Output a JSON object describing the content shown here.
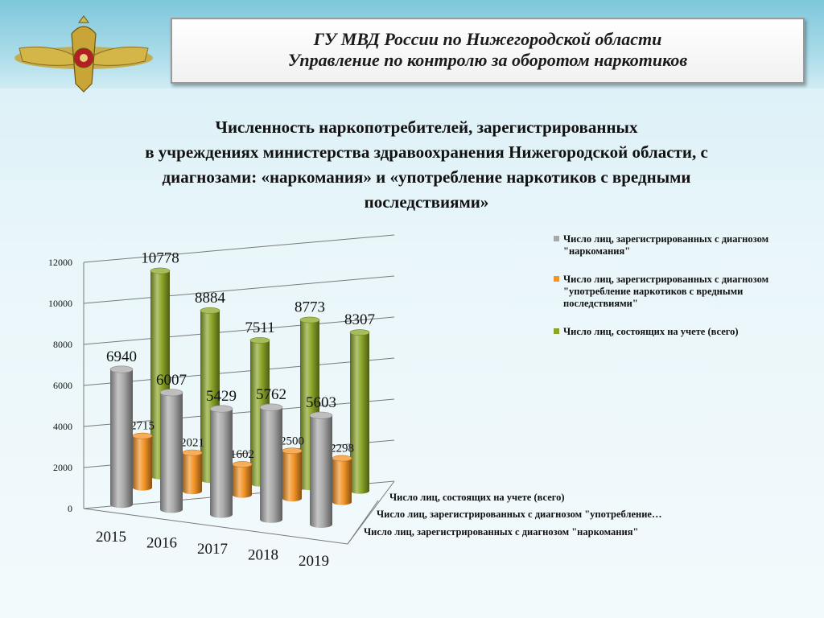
{
  "header": {
    "line1": "ГУ МВД России по Нижегородской области",
    "line2": "Управление по контролю за оборотом наркотиков"
  },
  "title_lines": [
    "Численность наркопотребителей, зарегистрированных",
    "в учреждениях министерства здравоохранения Нижегородской области, с",
    "диагнозами: «наркомания» и «употребление наркотиков с вредными",
    "последствиями»"
  ],
  "icons": {
    "emblem": "double-headed-eagle-emblem-icon"
  },
  "colors": {
    "gray": "#a8a8a8",
    "orange": "#f39325",
    "green": "#8aa527"
  },
  "chart_data": {
    "type": "bar",
    "title": "Численность наркопотребителей, зарегистрированных в учреждениях министерства здравоохранения Нижегородской области, с диагнозами: «наркомания» и «употребление наркотиков с вредными последствиями»",
    "categories": [
      "2015",
      "2016",
      "2017",
      "2018",
      "2019"
    ],
    "yticks": [
      "0",
      "2000",
      "4000",
      "6000",
      "8000",
      "10000",
      "12000"
    ],
    "ylim": [
      0,
      12000
    ],
    "grid": true,
    "legend": "right",
    "series": [
      {
        "name": "Число лиц, зарегистрированных с диагнозом \"наркомания\"",
        "color": "#a8a8a8",
        "values": [
          6940,
          6007,
          5429,
          5762,
          5603
        ]
      },
      {
        "name": "Число лиц, зарегистрированных с диагнозом \"употребление наркотиков с вредными последствиями\"",
        "color": "#f39325",
        "values": [
          2715,
          2021,
          1602,
          2500,
          2298
        ]
      },
      {
        "name": "Число лиц, состоящих на учете (всего)",
        "color": "#8aa527",
        "values": [
          10778,
          8884,
          7511,
          8773,
          8307
        ]
      }
    ],
    "depth_labels": [
      "Число лиц, состоящих на учете (всего)",
      "Число лиц, зарегистрированных с диагнозом \"употребление…",
      "Число лиц, зарегистрированных с диагнозом \"наркомания\""
    ]
  }
}
